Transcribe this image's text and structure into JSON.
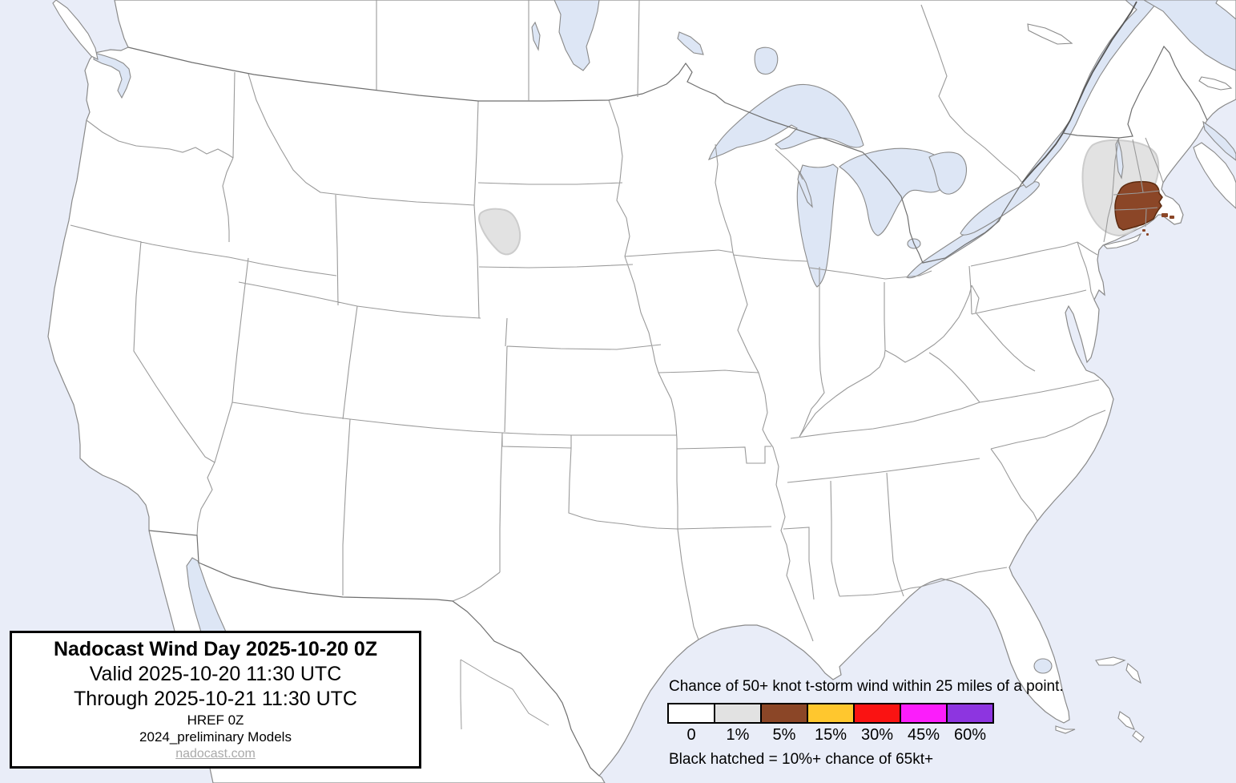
{
  "title_box": {
    "title": "Nadocast Wind Day 2025-10-20 0Z",
    "valid_line": "Valid 2025-10-20 11:30 UTC",
    "through_line": "Through 2025-10-21 11:30 UTC",
    "model_run": "HREF 0Z",
    "models_line": "2024_preliminary Models",
    "site_link": "nadocast.com"
  },
  "legend": {
    "heading": "Chance of 50+ knot t-storm wind within 25 miles of a point.",
    "note": "Black hatched = 10%+ chance of 65kt+",
    "items": [
      {
        "label": "0",
        "color": "#ffffff"
      },
      {
        "label": "1%",
        "color": "#e2e2e2"
      },
      {
        "label": "5%",
        "color": "#8b4627"
      },
      {
        "label": "15%",
        "color": "#ffc72e"
      },
      {
        "label": "30%",
        "color": "#fa1312"
      },
      {
        "label": "45%",
        "color": "#fb1dfb"
      },
      {
        "label": "60%",
        "color": "#8d35e0"
      }
    ]
  },
  "map": {
    "colors": {
      "water": "#e9edf8",
      "land": "#ffffff",
      "lake": "#dde6f5",
      "state_border": "#9a9a9a",
      "coast": "#8a8a8a",
      "intl_border": "#6f6f6f",
      "river_dark": "#555555",
      "prob_1pct_fill": "#e2e2e2",
      "prob_1pct_edge": "#cccccc",
      "prob_5pct_fill": "#8b4627",
      "prob_5pct_edge": "#5c2b10"
    },
    "forecast_areas": [
      {
        "level": "1%",
        "location": "western South Dakota"
      },
      {
        "level": "1%",
        "location": "eastern New York / Vermont / New Hampshire"
      },
      {
        "level": "5%",
        "location": "Massachusetts / Connecticut / Rhode Island"
      }
    ]
  }
}
